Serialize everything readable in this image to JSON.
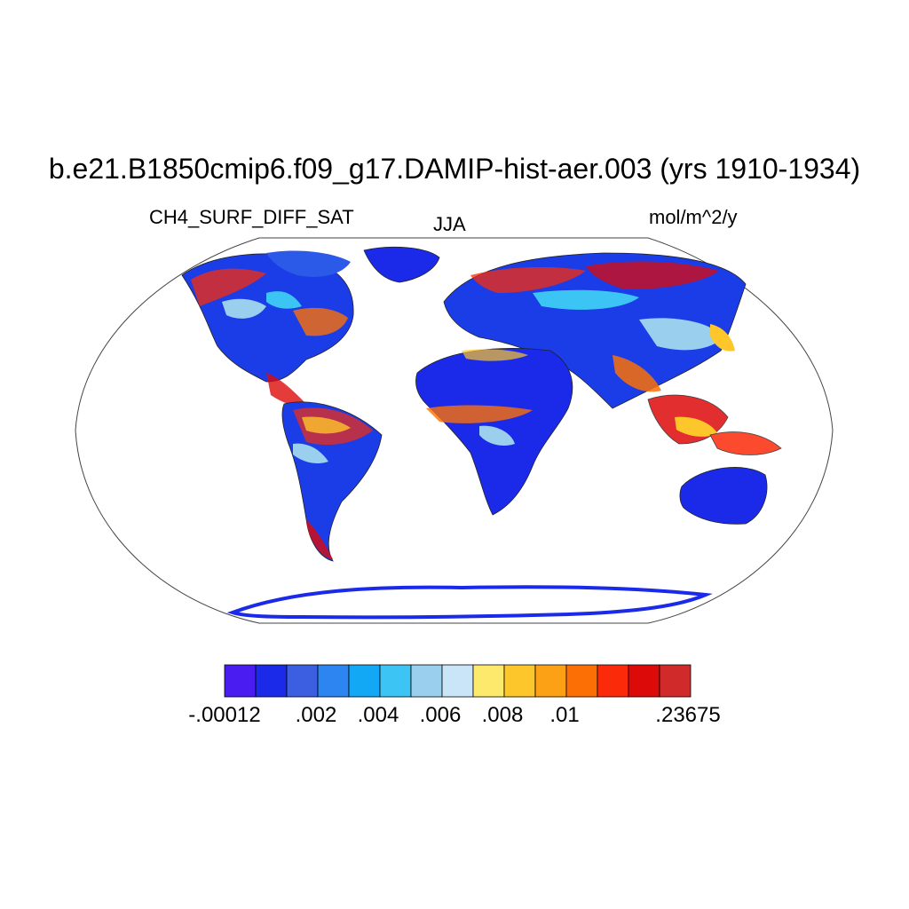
{
  "title": "b.e21.B1850cmip6.f09_g17.DAMIP-hist-aer.003 (yrs 1910-1934)",
  "left_label": "CH4_SURF_DIFF_SAT",
  "center_label": "JJA",
  "right_label": "mol/m^2/y",
  "projection": "robinson",
  "colorbar": {
    "colors": [
      "#4a1cf2",
      "#1a2ae8",
      "#3b5fe0",
      "#2c85f0",
      "#12a8f5",
      "#3cc4f5",
      "#9acfee",
      "#c9e5f7",
      "#fde96b",
      "#fdc62b",
      "#fca115",
      "#fc6f05",
      "#fb2b0a",
      "#dd0a0a",
      "#d12a2a"
    ],
    "tick_labels": [
      "-.00012",
      ".002",
      ".004",
      ".006",
      ".008",
      ".01",
      ".23675"
    ],
    "tick_boundaries": [
      0,
      2,
      4,
      6,
      8,
      10,
      15
    ]
  }
}
